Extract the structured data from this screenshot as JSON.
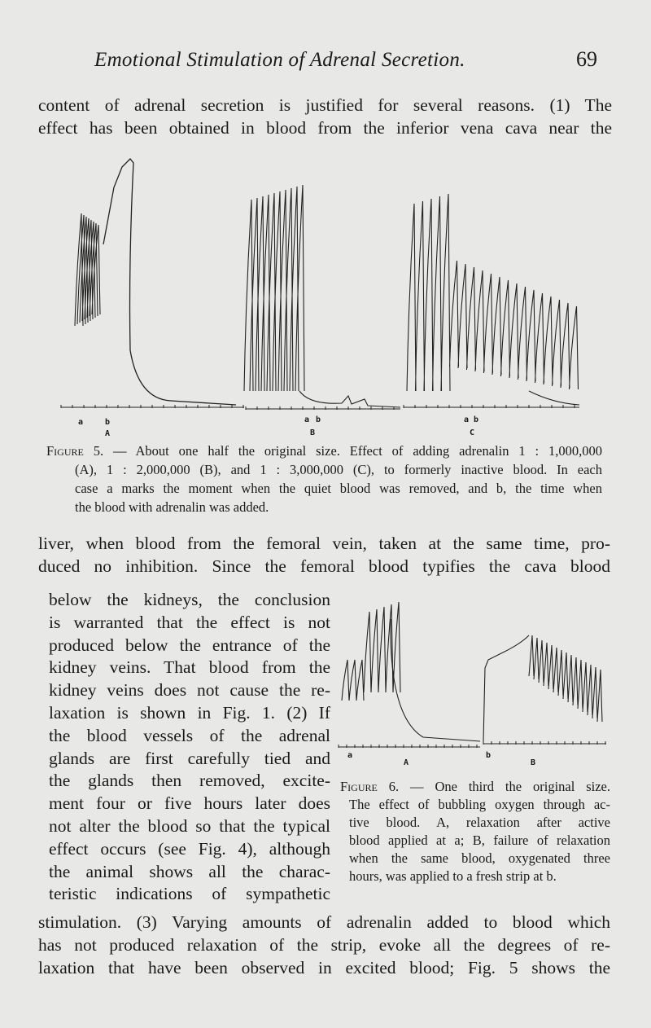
{
  "header": {
    "running_title": "Emotional Stimulation of Adrenal Secretion.",
    "page_number": "69"
  },
  "para1": [
    "content of adrenal secretion is justified for several reasons. (1) The",
    "effect has been obtained in blood from the inferior vena cava near the"
  ],
  "figure5": {
    "labels": {
      "A_a": "a",
      "A_b": "b",
      "A": "A",
      "B_a": "a",
      "B_b": "b",
      "B": "B",
      "C_a": "a",
      "C_b": "b",
      "C": "C"
    },
    "caption_label": "Figure 5.",
    "caption": [
      "— About one half the original size.  Effect of adding adrenalin 1 : 1,000,000",
      "(A), 1 : 2,000,000 (B), and 1 : 3,000,000 (C), to formerly inactive blood.  In each",
      "case a marks the moment when the quiet blood was removed, and b, the time when",
      "the blood with adrenalin was added."
    ]
  },
  "para2_full": [
    "liver, when blood from the femoral vein, taken at the same time, pro-",
    "duced no inhibition.  Since the femoral blood typifies the cava blood"
  ],
  "para2_col": [
    "below the kidneys, the conclusion",
    "is warranted that the effect is not",
    "produced below the entrance of the",
    "kidney veins.  That blood from the",
    "kidney veins does not cause the re-",
    "laxation is shown in Fig. 1.   (2) If",
    "the blood vessels of the adrenal",
    "glands are first carefully tied and",
    "the glands then removed, excite-",
    "ment four or five hours later does",
    "not alter the blood so that the typical",
    "effect occurs (see Fig. 4), although",
    "the animal shows all the charac-",
    "teristic indications of sympathetic"
  ],
  "para3": [
    "stimulation.  (3) Varying amounts of adrenalin added to blood which",
    "has not produced relaxation of the strip, evoke all the degrees of re-",
    "laxation that have been observed in excited blood; Fig. 5 shows the"
  ],
  "figure6": {
    "labels": {
      "a": "a",
      "A": "A",
      "b": "b",
      "B": "B"
    },
    "caption_label": "Figure 6.",
    "caption": [
      "— One third the original size.",
      "The effect of bubbling oxygen through ac-",
      "tive blood.  A, relaxation after active",
      "blood applied at a; B, failure of relaxation",
      "when the same blood, oxygenated three",
      "hours, was applied to a fresh strip at b."
    ]
  }
}
